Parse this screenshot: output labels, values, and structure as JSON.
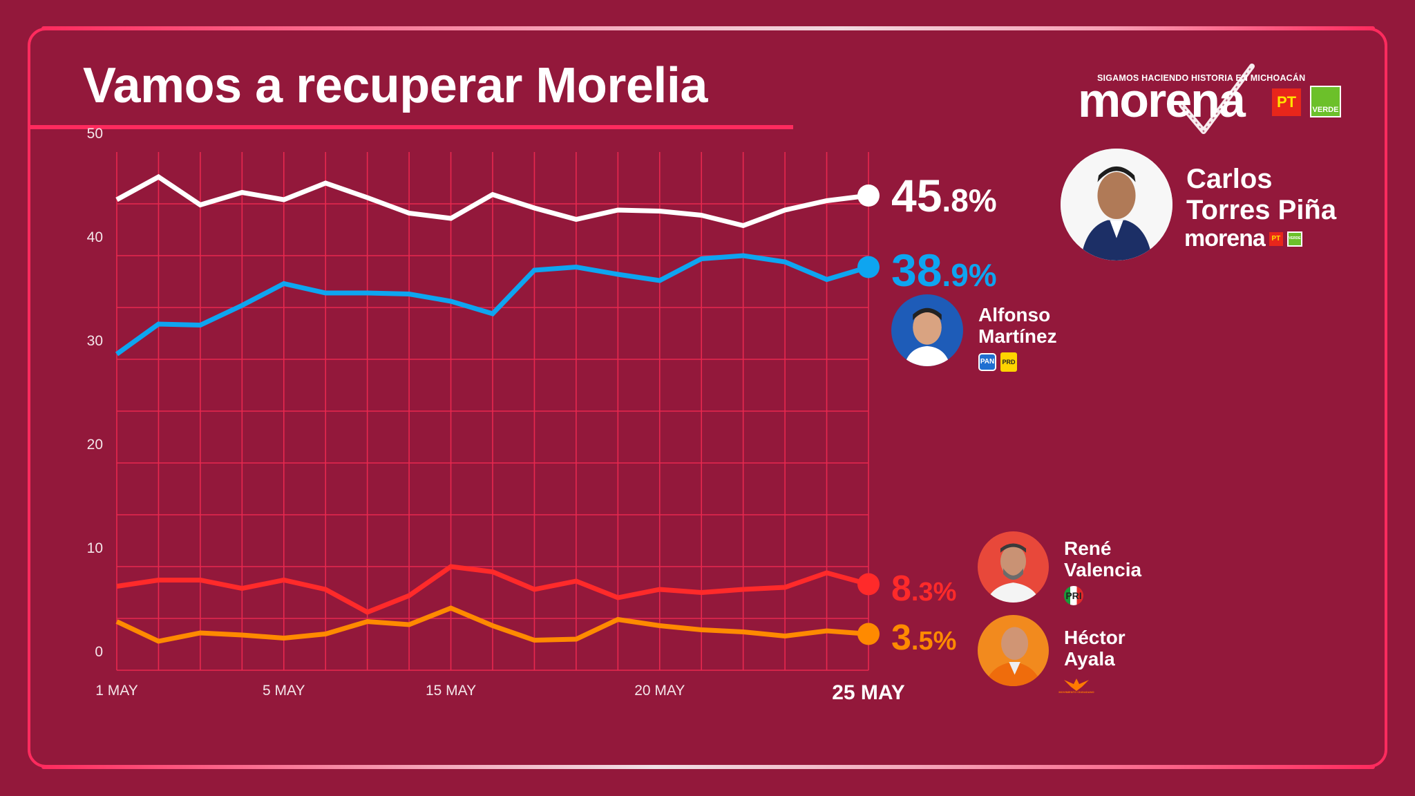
{
  "header": {
    "title": "Vamos a recuperar Morelia",
    "logo": {
      "slogan": "SIGAMOS HACIENDO HISTORIA EN MICHOACÁN",
      "wordmark": "morena",
      "allies": [
        "PT",
        "VERDE"
      ]
    }
  },
  "colors": {
    "background": "#93183b",
    "accent": "#ff2b5e",
    "grid": "#e8284f",
    "torres": "#ffffff",
    "martinez": "#0ea5f0",
    "valencia": "#ff2a2a",
    "ayala": "#ff8a00"
  },
  "candidates": [
    {
      "id": "torres",
      "name_line1": "Carlos",
      "name_line2": "Torres Piña",
      "party": "morena",
      "allies": [
        "PT",
        "VERDE"
      ],
      "pct_int": "45",
      "pct_dec": ".8%",
      "photo": "candidate-photo"
    },
    {
      "id": "martinez",
      "name_line1": "Alfonso",
      "name_line2": "Martínez",
      "party": "",
      "allies": [
        "PAN",
        "PRD"
      ],
      "pct_int": "38",
      "pct_dec": ".9%",
      "photo": "candidate-photo"
    },
    {
      "id": "valencia",
      "name_line1": "René",
      "name_line2": "Valencia",
      "party": "",
      "allies": [
        "PRI"
      ],
      "pct_int": "8",
      "pct_dec": ".3%",
      "photo": "candidate-photo"
    },
    {
      "id": "ayala",
      "name_line1": "Héctor",
      "name_line2": "Ayala",
      "party": "",
      "allies": [
        "MOVIMIENTO CIUDADANO"
      ],
      "pct_int": "3",
      "pct_dec": ".5%",
      "photo": "candidate-photo"
    }
  ],
  "chart_data": {
    "type": "line",
    "title": "Vamos a recuperar Morelia",
    "xlabel": "",
    "ylabel": "",
    "ylim": [
      0,
      50
    ],
    "yticks": [
      "0",
      "10",
      "20",
      "30",
      "40",
      "50"
    ],
    "grid": true,
    "n_points": 19,
    "x_tick_labels": [
      {
        "index": 0,
        "label": "1 MAY"
      },
      {
        "index": 4,
        "label": "5 MAY"
      },
      {
        "index": 8,
        "label": "15 MAY"
      },
      {
        "index": 13,
        "label": "20 MAY"
      },
      {
        "index": 18,
        "label": "25 MAY",
        "emphasis": true
      }
    ],
    "series": [
      {
        "name": "Carlos Torres Piña",
        "color": "#ffffff",
        "end_label": "45.8%",
        "values": [
          45.4,
          47.6,
          44.9,
          46.1,
          45.4,
          47.0,
          45.6,
          44.1,
          43.6,
          45.9,
          44.6,
          43.5,
          44.4,
          44.3,
          43.9,
          42.9,
          44.4,
          45.3,
          45.8
        ]
      },
      {
        "name": "Alfonso Martínez",
        "color": "#0ea5f0",
        "end_label": "38.9%",
        "values": [
          30.5,
          33.4,
          33.3,
          35.2,
          37.3,
          36.4,
          36.4,
          36.3,
          35.6,
          34.4,
          38.6,
          38.9,
          38.2,
          37.6,
          39.7,
          40.0,
          39.4,
          37.7,
          38.9
        ]
      },
      {
        "name": "René Valencia",
        "color": "#ff2a2a",
        "end_label": "8.3%",
        "values": [
          8.1,
          8.7,
          8.7,
          7.9,
          8.7,
          7.8,
          5.6,
          7.2,
          10.0,
          9.5,
          7.8,
          8.6,
          7.0,
          7.8,
          7.5,
          7.8,
          8.0,
          9.4,
          8.3
        ]
      },
      {
        "name": "Héctor Ayala",
        "color": "#ff8a00",
        "end_label": "3.5%",
        "values": [
          4.7,
          2.8,
          3.6,
          3.4,
          3.1,
          3.5,
          4.7,
          4.4,
          6.0,
          4.3,
          2.9,
          3.0,
          4.9,
          4.3,
          3.9,
          3.7,
          3.3,
          3.8,
          3.5
        ]
      }
    ]
  }
}
